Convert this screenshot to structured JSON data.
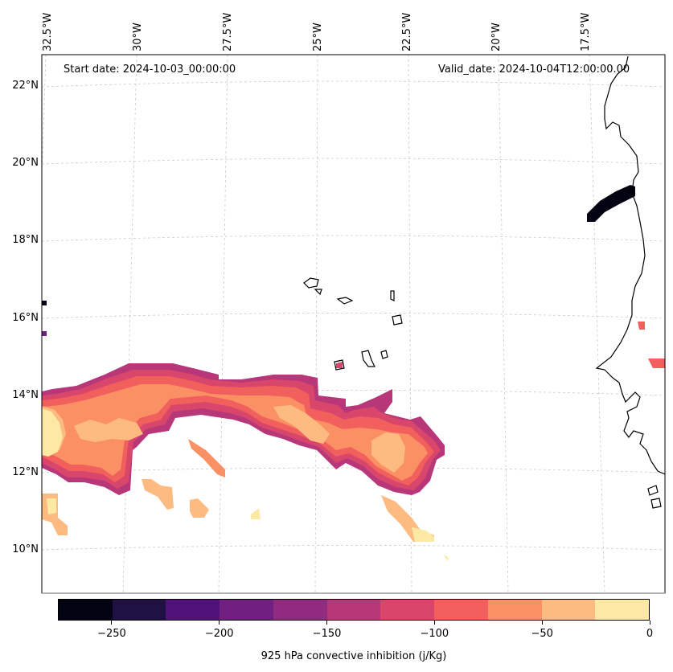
{
  "map": {
    "start_date": "Start date: 2024-10-03_00:00:00",
    "valid_date": "Valid_date: 2024-10-04T12:00:00.00",
    "lat_labels": [
      "22°N",
      "20°N",
      "18°N",
      "16°N",
      "14°N",
      "12°N",
      "10°N"
    ],
    "lon_labels": [
      "32.5°W",
      "30°W",
      "27.5°W",
      "25°W",
      "22.5°W",
      "20°W",
      "17.5°W"
    ],
    "gridline_color": "#cccccc",
    "coastline_color": "#000000"
  },
  "colorbar": {
    "title": "925 hPa convective inhibition (j/Kg)",
    "tick_labels": [
      "−250",
      "−200",
      "−150",
      "−100",
      "−50",
      "0"
    ],
    "tick_values": [
      -250,
      -200,
      -150,
      -100,
      -50,
      0
    ],
    "min": -275,
    "max": 0,
    "step": 25,
    "colors": [
      "#040312",
      "#201143",
      "#4f127b",
      "#711f81",
      "#922a7f",
      "#b73779",
      "#d9466b",
      "#f1605d",
      "#fc9065",
      "#febb81",
      "#fde8a4"
    ]
  }
}
